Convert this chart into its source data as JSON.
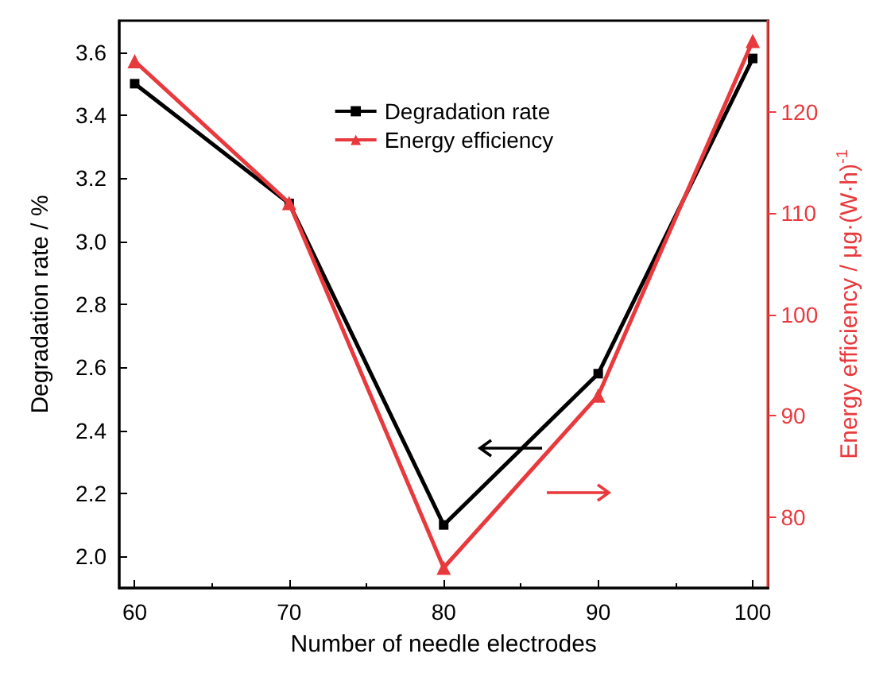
{
  "chart_data": {
    "type": "line",
    "xlabel": "Number of needle electrodes",
    "ylabel": "Degradation rate / %",
    "y2label": "Energy efficiency / μg·(W·h)$^{-1}$",
    "x": [
      60,
      70,
      80,
      90,
      100
    ],
    "series": [
      {
        "name": "Degradation rate",
        "color": "#000000",
        "values": [
          3.5,
          3.12,
          2.1,
          2.58,
          3.58
        ],
        "marker": "square"
      },
      {
        "name": "Energy efficiency",
        "color": "#e8393d",
        "values": [
          125,
          111,
          75,
          92,
          127
        ],
        "axis": "y2",
        "marker": "triangle"
      }
    ],
    "xlim": [
      59,
      101
    ],
    "xticks": [
      60,
      70,
      80,
      90,
      100
    ],
    "ylim": [
      1.9,
      3.7
    ],
    "yticks": [
      {
        "value": 2,
        "label": "2.0"
      },
      2.2,
      2.4,
      2.6,
      2.8,
      {
        "value": 3,
        "label": "3.0"
      },
      3.2,
      3.4,
      3.6
    ],
    "y2lim": [
      73,
      129
    ],
    "y2ticks": [
      80,
      90,
      100,
      110,
      120
    ],
    "legend": "top",
    "grid": false,
    "line_style": "solid"
  }
}
